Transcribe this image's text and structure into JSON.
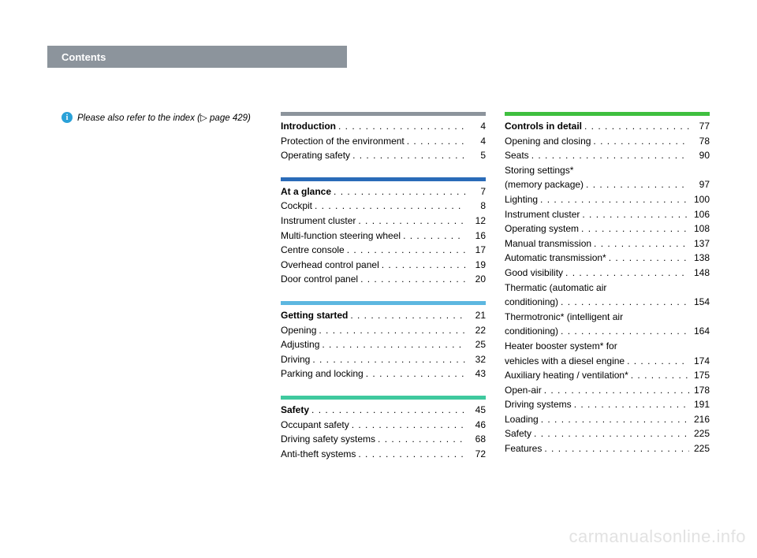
{
  "header": {
    "title": "Contents"
  },
  "info": {
    "icon_bg": "#2aa1d8",
    "icon_letter": "i",
    "text_before": "Please also refer to the index (",
    "arrow": "▷",
    "text_after": " page 429)"
  },
  "columns": [
    {
      "sections": []
    },
    {
      "sections": [
        {
          "bar_color": "#8c949c",
          "head": {
            "label": "Introduction",
            "page": "4"
          },
          "items": [
            {
              "label": "Protection of the environment",
              "page": "4"
            },
            {
              "label": "Operating safety",
              "page": "5"
            }
          ]
        },
        {
          "bar_color": "#2a6bb8",
          "head": {
            "label": "At a glance",
            "page": "7"
          },
          "items": [
            {
              "label": "Cockpit",
              "page": "8"
            },
            {
              "label": "Instrument cluster",
              "page": "12"
            },
            {
              "label": "Multi-function steering wheel",
              "page": "16"
            },
            {
              "label": "Centre console",
              "page": "17"
            },
            {
              "label": "Overhead control panel",
              "page": "19"
            },
            {
              "label": "Door control panel",
              "page": "20"
            }
          ]
        },
        {
          "bar_color": "#5db7e0",
          "head": {
            "label": "Getting started",
            "page": "21"
          },
          "items": [
            {
              "label": "Opening",
              "page": "22"
            },
            {
              "label": "Adjusting",
              "page": "25"
            },
            {
              "label": "Driving",
              "page": "32"
            },
            {
              "label": "Parking and locking",
              "page": "43"
            }
          ]
        },
        {
          "bar_color": "#3fc99e",
          "head": {
            "label": "Safety",
            "page": "45"
          },
          "items": [
            {
              "label": "Occupant safety",
              "page": "46"
            },
            {
              "label": "Driving safety systems",
              "page": "68"
            },
            {
              "label": "Anti-theft systems",
              "page": "72"
            }
          ]
        }
      ]
    },
    {
      "sections": [
        {
          "bar_color": "#3fbf3f",
          "head": {
            "label": "Controls in detail",
            "page": "77"
          },
          "items": [
            {
              "label": "Opening and closing",
              "page": "78"
            },
            {
              "label": "Seats",
              "page": "90"
            },
            {
              "label": "Storing settings*",
              "sublabel": "(memory package)",
              "page": "97"
            },
            {
              "label": "Lighting",
              "page": "100"
            },
            {
              "label": "Instrument cluster",
              "page": "106"
            },
            {
              "label": "Operating system",
              "page": "108"
            },
            {
              "label": "Manual transmission",
              "page": "137"
            },
            {
              "label": "Automatic transmission*",
              "page": "138"
            },
            {
              "label": "Good visibility",
              "page": "148"
            },
            {
              "label": "Thermatic (automatic air",
              "sublabel": "conditioning)",
              "page": "154"
            },
            {
              "label": "Thermotronic* (intelligent air",
              "sublabel": "conditioning)",
              "page": "164"
            },
            {
              "label": "Heater booster system* for",
              "sublabel": "vehicles with a diesel engine",
              "page": "174"
            },
            {
              "label": "Auxiliary heating / ventilation*",
              "page": "175"
            },
            {
              "label": "Open-air",
              "page": "178"
            },
            {
              "label": "Driving systems",
              "page": "191"
            },
            {
              "label": "Loading",
              "page": "216"
            },
            {
              "label": "Safety",
              "page": "225"
            },
            {
              "label": "Features",
              "page": "225"
            }
          ]
        }
      ]
    }
  ],
  "watermark": "carmanualsonline.info"
}
